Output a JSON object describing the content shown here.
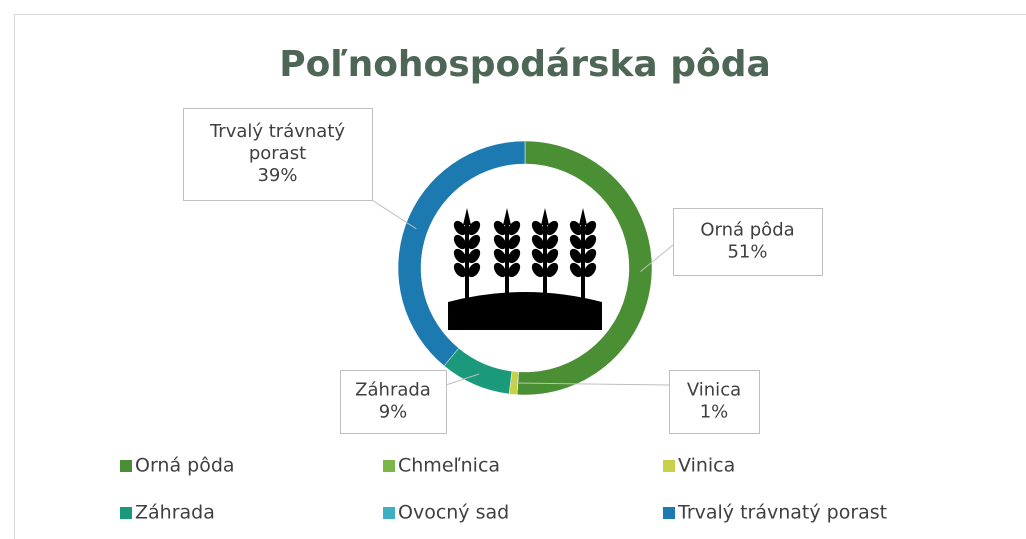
{
  "chart_data": {
    "type": "donut",
    "title": "Poľnohospodárska pôda",
    "categories": [
      "Orná pôda",
      "Chmeľnica",
      "Vinica",
      "Záhrada",
      "Ovocný sad",
      "Trvalý trávnatý porast"
    ],
    "values": [
      51,
      0,
      1,
      9,
      0,
      39
    ],
    "value_labels": [
      "51%",
      null,
      "1%",
      "9%",
      null,
      "39%"
    ],
    "colors": [
      "#4a8f34",
      "#7ab648",
      "#c8cf4a",
      "#1a9a7a",
      "#3fb0c4",
      "#1c7ab0"
    ],
    "legend": "bottom"
  }
}
